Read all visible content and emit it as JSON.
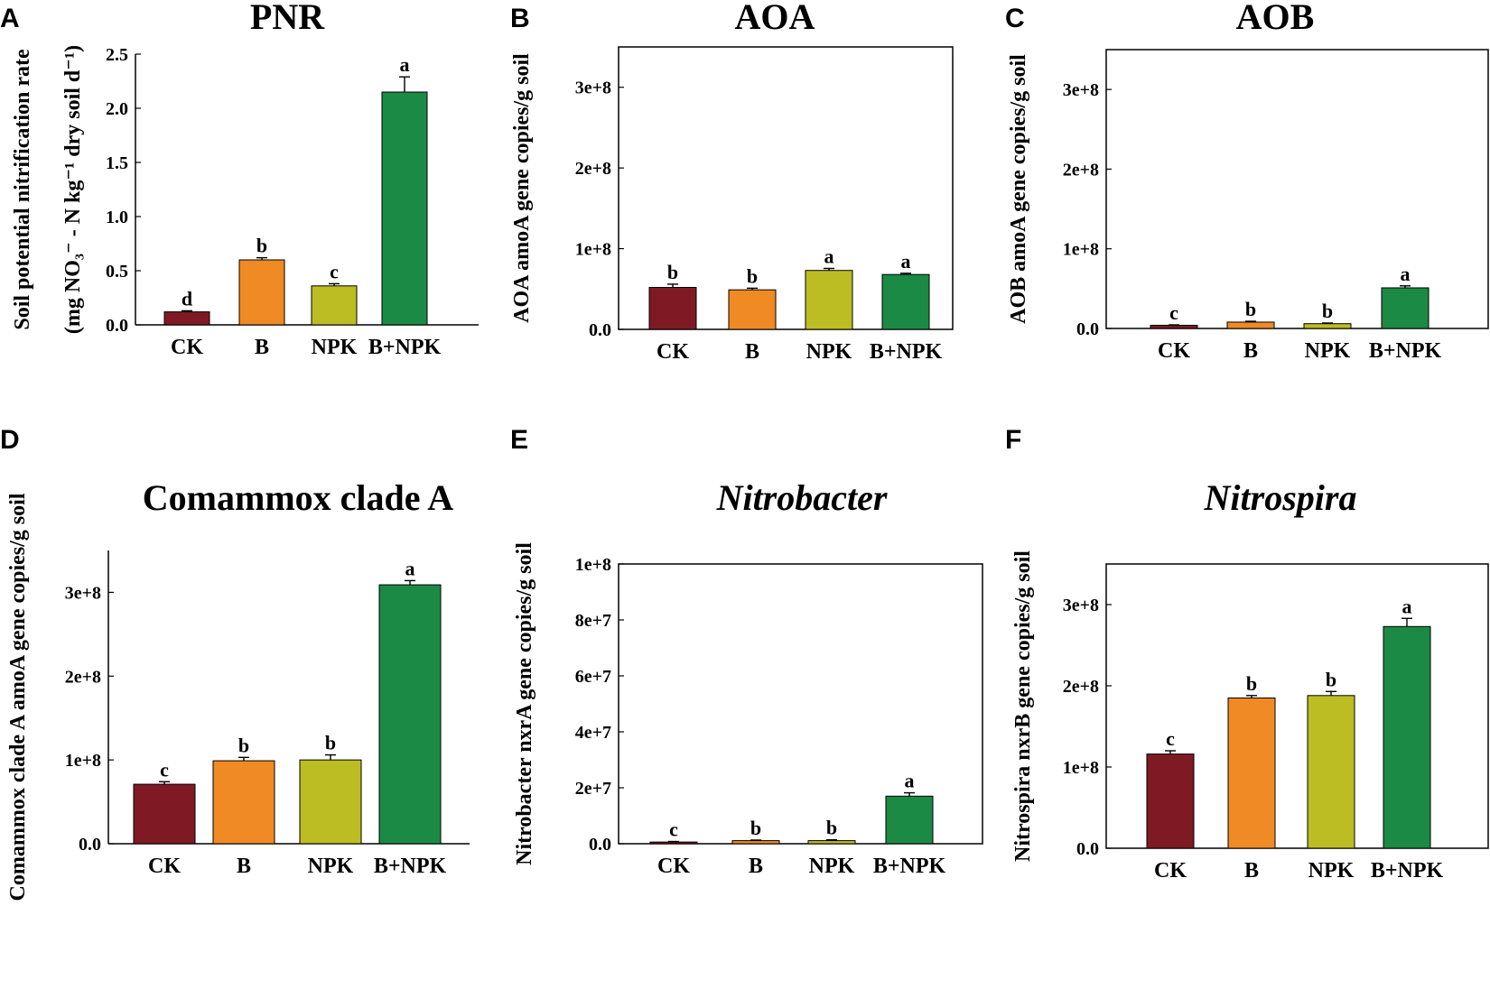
{
  "colors": {
    "CK": "#7f1a24",
    "B": "#f08a24",
    "NPK": "#bcbd22",
    "B+NPK": "#1b8a44"
  },
  "chart_data": [
    {
      "panel": "A",
      "type": "bar",
      "title": "PNR",
      "title_italic": false,
      "ylabel_lines": [
        "Soil potential nitrification rate",
        "(mg NO₃⁻ - N kg⁻¹ dry soil d⁻¹)"
      ],
      "categories": [
        "CK",
        "B",
        "NPK",
        "B+NPK"
      ],
      "values": [
        0.12,
        0.6,
        0.36,
        2.15
      ],
      "errors": [
        0.01,
        0.02,
        0.02,
        0.14
      ],
      "labels": [
        "d",
        "b",
        "c",
        "a"
      ],
      "ylim": [
        0,
        2.5
      ],
      "yticks": [
        0,
        0.5,
        1.0,
        1.5,
        2.0,
        2.5
      ],
      "yticklabels": [
        "0.0",
        "0.5",
        "1.0",
        "1.5",
        "2.0",
        "2.5"
      ],
      "frame": "axes"
    },
    {
      "panel": "B",
      "type": "bar",
      "title": "AOA",
      "title_italic": false,
      "ylabel_lines": [
        "AOA amoA gene copies/g soil"
      ],
      "categories": [
        "CK",
        "B",
        "NPK",
        "B+NPK"
      ],
      "values": [
        52000000,
        49000000,
        73000000,
        68000000
      ],
      "errors": [
        4000000,
        2000000,
        2500000,
        1500000
      ],
      "labels": [
        "b",
        "b",
        "a",
        "a"
      ],
      "ylim": [
        0,
        350000000
      ],
      "yticks": [
        0,
        100000000,
        200000000,
        300000000
      ],
      "yticklabels": [
        "0.0",
        "1e+8",
        "2e+8",
        "3e+8"
      ],
      "frame": "box"
    },
    {
      "panel": "C",
      "type": "bar",
      "title": "AOB",
      "title_italic": false,
      "ylabel_lines": [
        "AOB amoA gene copies/g soil"
      ],
      "categories": [
        "CK",
        "B",
        "NPK",
        "B+NPK"
      ],
      "values": [
        4000000,
        8000000,
        6000000,
        51000000
      ],
      "errors": [
        500000,
        1000000,
        800000,
        2500000
      ],
      "labels": [
        "c",
        "b",
        "b",
        "a"
      ],
      "ylim": [
        0,
        350000000
      ],
      "yticks": [
        0,
        100000000,
        200000000,
        300000000
      ],
      "yticklabels": [
        "0.0",
        "1e+8",
        "2e+8",
        "3e+8"
      ],
      "frame": "box"
    },
    {
      "panel": "D",
      "type": "bar",
      "title": "Comammox clade A",
      "title_italic": false,
      "ylabel_lines": [
        "Comammox clade A amoA gene copies/g soil"
      ],
      "categories": [
        "CK",
        "B",
        "NPK",
        "B+NPK"
      ],
      "values": [
        71000000,
        99000000,
        100000000,
        309000000
      ],
      "errors": [
        3000000,
        4000000,
        6000000,
        5000000
      ],
      "labels": [
        "c",
        "b",
        "b",
        "a"
      ],
      "ylim": [
        0,
        350000000
      ],
      "yticks": [
        0,
        100000000,
        200000000,
        300000000
      ],
      "yticklabels": [
        "0.0",
        "1e+8",
        "2e+8",
        "3e+8"
      ],
      "frame": "axes"
    },
    {
      "panel": "E",
      "type": "bar",
      "title": "Nitrobacter",
      "title_italic": true,
      "ylabel_lines": [
        "Nitrobacter nxrA gene copies/g soil"
      ],
      "categories": [
        "CK",
        "B",
        "NPK",
        "B+NPK"
      ],
      "values": [
        600000,
        1100000,
        1100000,
        17000000
      ],
      "errors": [
        200000,
        200000,
        300000,
        1200000
      ],
      "labels": [
        "c",
        "b",
        "b",
        "a"
      ],
      "ylim": [
        0,
        100000000
      ],
      "yticks": [
        0,
        20000000,
        40000000,
        60000000,
        80000000,
        100000000
      ],
      "yticklabels": [
        "0.0",
        "2e+7",
        "4e+7",
        "6e+7",
        "8e+7",
        "1e+8"
      ],
      "frame": "box"
    },
    {
      "panel": "F",
      "type": "bar",
      "title": "Nitrospira",
      "title_italic": true,
      "ylabel_lines": [
        "Nitrospira nxrB gene copies/g soil"
      ],
      "categories": [
        "CK",
        "B",
        "NPK",
        "B+NPK"
      ],
      "values": [
        116000000,
        185000000,
        188000000,
        273000000
      ],
      "errors": [
        4000000,
        3000000,
        5000000,
        10000000
      ],
      "labels": [
        "c",
        "b",
        "b",
        "a"
      ],
      "ylim": [
        0,
        350000000
      ],
      "yticks": [
        0,
        100000000,
        200000000,
        300000000
      ],
      "yticklabels": [
        "0.0",
        "1e+8",
        "2e+8",
        "3e+8"
      ],
      "frame": "box"
    }
  ]
}
